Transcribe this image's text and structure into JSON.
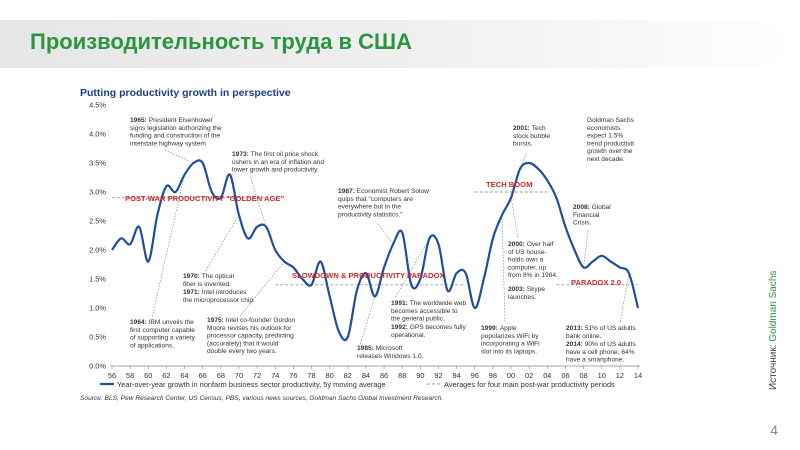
{
  "slide": {
    "title": "Производительность труда в США",
    "page_number": "4",
    "source_label": "Источник:",
    "source_brand": "Goldman Sachs"
  },
  "colors": {
    "title": "#2b9540",
    "line": "#1f4e9c",
    "era_label": "#cc2a2a",
    "average": "#9a9a9a"
  },
  "chart_data": {
    "type": "line",
    "title": "Putting productivity growth in perspective",
    "x_ticks": [
      "56",
      "58",
      "60",
      "62",
      "64",
      "66",
      "68",
      "70",
      "72",
      "74",
      "76",
      "78",
      "80",
      "82",
      "84",
      "86",
      "88",
      "90",
      "92",
      "94",
      "96",
      "98",
      "00",
      "02",
      "04",
      "06",
      "08",
      "10",
      "12",
      "14"
    ],
    "y_ticks": [
      "0.0%",
      "0.5%",
      "1.0%",
      "1.5%",
      "2.0%",
      "2.5%",
      "3.0%",
      "3.5%",
      "4.0%",
      "4.5%"
    ],
    "ylim": [
      0,
      4.5
    ],
    "series": [
      {
        "name": "Year-over-year growth in nonfarm business sector productivity, 5y moving average",
        "x": [
          1956,
          1957,
          1958,
          1959,
          1960,
          1961,
          1962,
          1963,
          1964,
          1965,
          1966,
          1967,
          1968,
          1969,
          1970,
          1971,
          1972,
          1973,
          1974,
          1975,
          1976,
          1977,
          1978,
          1979,
          1980,
          1981,
          1982,
          1983,
          1984,
          1985,
          1986,
          1987,
          1988,
          1989,
          1990,
          1991,
          1992,
          1993,
          1994,
          1995,
          1996,
          1997,
          1998,
          1999,
          2000,
          2001,
          2002,
          2003,
          2004,
          2005,
          2006,
          2007,
          2008,
          2009,
          2010,
          2011,
          2012,
          2013,
          2014
        ],
        "y": [
          2.0,
          2.2,
          2.1,
          2.4,
          1.8,
          2.6,
          3.1,
          3.0,
          3.3,
          3.5,
          3.5,
          3.0,
          2.9,
          3.3,
          2.6,
          2.2,
          2.4,
          2.4,
          2.0,
          1.8,
          1.7,
          1.5,
          1.4,
          1.8,
          1.2,
          0.6,
          0.5,
          1.3,
          1.6,
          1.2,
          1.7,
          2.1,
          2.3,
          1.4,
          1.5,
          2.2,
          2.1,
          1.3,
          1.6,
          1.6,
          1.0,
          1.5,
          2.2,
          2.6,
          2.9,
          3.4,
          3.5,
          3.4,
          3.2,
          2.9,
          2.4,
          2.0,
          1.7,
          1.8,
          1.9,
          1.8,
          1.7,
          1.6,
          1.0
        ]
      },
      {
        "name": "Averages for four main post-war productivity periods",
        "segments": [
          {
            "x0": 1956,
            "x1": 1973,
            "y": 2.9
          },
          {
            "x0": 1974,
            "x1": 1995,
            "y": 1.4
          },
          {
            "x0": 1996,
            "x1": 2004,
            "y": 3.0
          },
          {
            "x0": 2005,
            "x1": 2014,
            "y": 1.4
          }
        ]
      }
    ],
    "era_labels": [
      {
        "text": "POST-WAR PRODUCTIVITY \"GOLDEN AGE\""
      },
      {
        "text": "SLOWDOWN & PRODUCTIVITY PARADOX"
      },
      {
        "text": "TECH BOOM"
      },
      {
        "text": "PARADOX 2.0"
      }
    ],
    "annotations": [
      {
        "year": "1965:",
        "lines": [
          "President Eisenhower",
          "signs legislation authorizing the",
          "funding and construction of the",
          "interstate highway system."
        ]
      },
      {
        "year": "1973:",
        "lines": [
          "The first oil price shock",
          "ushers in an era of inflation and",
          "lower growth and productivity."
        ]
      },
      {
        "year": "1987:",
        "lines": [
          "Economist Robert Solow",
          "quips that \"computers are",
          "everywhere but in the",
          "productivity statistics.\""
        ]
      },
      {
        "year": "2001:",
        "lines": [
          "Tech",
          "stock bubble",
          "bursts."
        ]
      },
      {
        "year": "",
        "lines": [
          "Goldman Sachs",
          "economists",
          "expect 1.5%",
          "trend productivit",
          "growth over the",
          "next decade."
        ]
      },
      {
        "year": "2008:",
        "lines": [
          "Global",
          "Financial",
          "Crisis."
        ]
      },
      {
        "year": "2000:",
        "lines": [
          "Over half",
          "of US house-",
          "holds own a",
          "computer, up",
          "from 8% in 1984."
        ]
      },
      {
        "year": "2003:",
        "lines": [
          "Skype",
          "launches."
        ]
      },
      {
        "year": "1970:",
        "lines": [
          "The optical",
          "fiber is invented."
        ]
      },
      {
        "year": "1971:",
        "lines": [
          "Intel introduces",
          "the microprocessor chip."
        ]
      },
      {
        "year": "1991:",
        "lines": [
          "The worldwide web",
          "becomes accessible to",
          "the general public."
        ]
      },
      {
        "year": "1992:",
        "lines": [
          "GPS becomes fully",
          "operational."
        ]
      },
      {
        "year": "1975:",
        "lines": [
          "Intel co-founder Gordon",
          "Moore revises his outlook for",
          "processor capacity, predicting",
          "(accurately) that it would",
          "double every two years."
        ]
      },
      {
        "year": "1964:",
        "lines": [
          "IBM unveils the",
          "first computer capable",
          "of supporting a variety",
          "of applications."
        ]
      },
      {
        "year": "1985:",
        "lines": [
          "Microsoft",
          "releases Windows 1.0."
        ]
      },
      {
        "year": "1999:",
        "lines": [
          "Apple",
          "popularizes WiFi by",
          "incorporating a WiFi",
          "slot into its laptops."
        ]
      },
      {
        "year": "2013:",
        "lines": [
          "51% of US adults",
          "bank online."
        ]
      },
      {
        "year": "2014:",
        "lines": [
          "90% of US adults",
          "have a cell phone; 64%",
          "have a smartphone."
        ]
      }
    ],
    "source": "Source: BLS, Pew Research Center, US Census, PBS, various news sources, Goldman Sachs Global Investment Research."
  }
}
